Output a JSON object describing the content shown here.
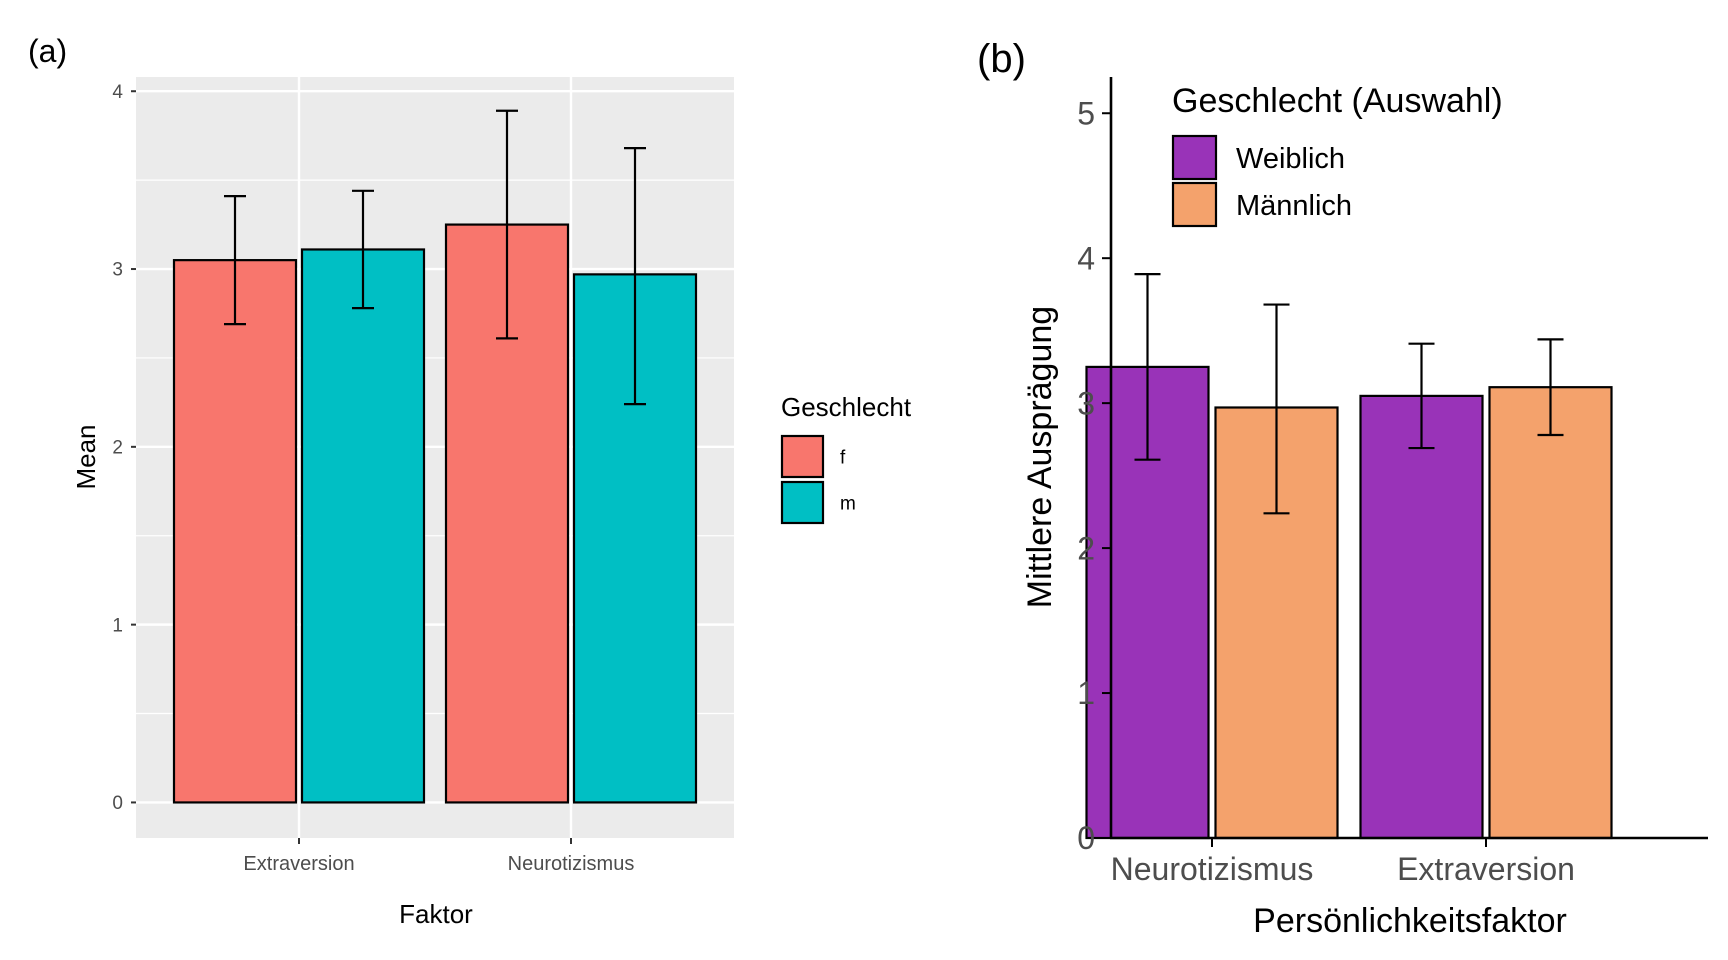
{
  "chart_data": [
    {
      "panel_label": "(a)",
      "type": "bar",
      "categories": [
        "Extraversion",
        "Neurotizismus"
      ],
      "series": [
        {
          "name": "f",
          "color": "#F8766D",
          "values": [
            3.05,
            3.25
          ],
          "err_low": [
            2.69,
            2.61
          ],
          "err_high": [
            3.41,
            3.89
          ]
        },
        {
          "name": "m",
          "color": "#00BFC4",
          "values": [
            3.11,
            2.97
          ],
          "err_low": [
            2.78,
            2.24
          ],
          "err_high": [
            3.44,
            3.68
          ]
        }
      ],
      "xlabel": "Faktor",
      "ylabel": "Mean",
      "ylim": [
        -0.2,
        4.08
      ],
      "yticks": [
        "0",
        "1",
        "2",
        "3",
        "4"
      ],
      "legend_title": "Geschlecht",
      "legend_position": "right",
      "grid": true,
      "background": "#EBEBEB"
    },
    {
      "panel_label": "(b)",
      "type": "bar",
      "categories": [
        "Neurotizismus",
        "Extraversion"
      ],
      "series": [
        {
          "name": "Weiblich",
          "color": "#9933B8",
          "values": [
            3.25,
            3.05
          ],
          "err_low": [
            2.61,
            2.69
          ],
          "err_high": [
            3.89,
            3.41
          ]
        },
        {
          "name": "Männlich",
          "color": "#F4A26C",
          "values": [
            2.97,
            3.11
          ],
          "err_low": [
            2.24,
            2.78
          ],
          "err_high": [
            3.68,
            3.44
          ]
        }
      ],
      "xlabel": "Persönlichkeitsfaktor",
      "ylabel": "Mittlere Ausprägung",
      "ylim": [
        0,
        5.25
      ],
      "yticks": [
        "0",
        "1",
        "2",
        "3",
        "4",
        "5"
      ],
      "legend_title": "Geschlecht (Auswahl)",
      "legend_position": "top-left",
      "grid": false,
      "background": "#FFFFFF"
    }
  ]
}
